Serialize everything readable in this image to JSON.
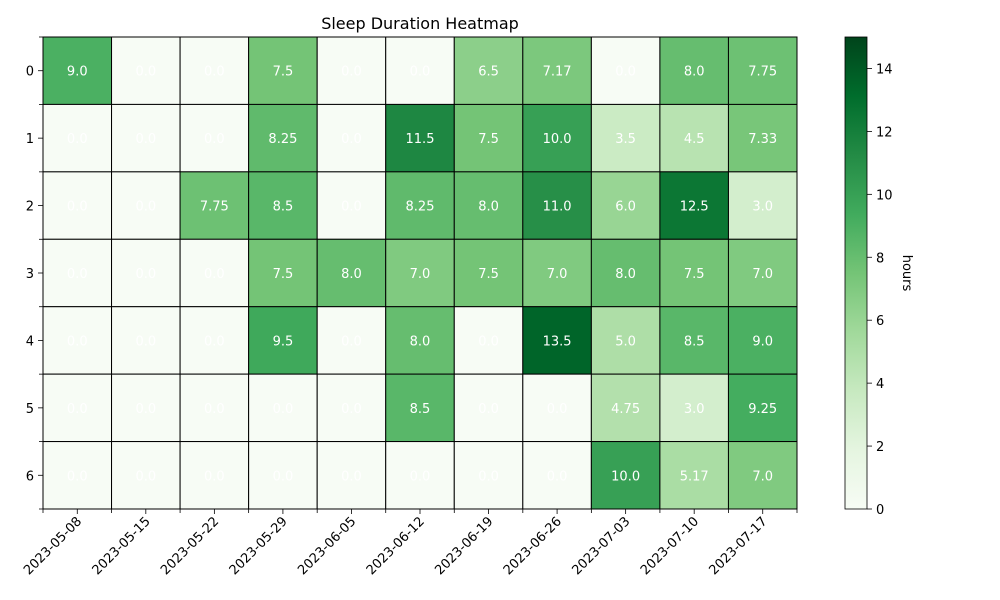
{
  "chart_data": {
    "type": "heatmap",
    "title": "Sleep Duration Heatmap",
    "xlabel": "",
    "ylabel": "",
    "x_categories": [
      "2023-05-08",
      "2023-05-15",
      "2023-05-22",
      "2023-05-29",
      "2023-06-05",
      "2023-06-12",
      "2023-06-19",
      "2023-06-26",
      "2023-07-03",
      "2023-07-10",
      "2023-07-17"
    ],
    "y_categories": [
      "0",
      "1",
      "2",
      "3",
      "4",
      "5",
      "6"
    ],
    "values": [
      [
        9.0,
        0.0,
        0.0,
        7.5,
        0.0,
        0.0,
        6.5,
        7.17,
        0.0,
        8.0,
        7.75
      ],
      [
        0.0,
        0.0,
        0.0,
        8.25,
        0.0,
        11.5,
        7.5,
        10.0,
        3.5,
        4.5,
        7.33
      ],
      [
        0.0,
        0.0,
        7.75,
        8.5,
        0.0,
        8.25,
        8.0,
        11.0,
        6.0,
        12.5,
        3.0
      ],
      [
        0.0,
        0.0,
        0.0,
        7.5,
        8.0,
        7.0,
        7.5,
        7.0,
        8.0,
        7.5,
        7.0
      ],
      [
        0.0,
        0.0,
        0.0,
        9.5,
        0.0,
        8.0,
        0.0,
        13.5,
        5.0,
        8.5,
        9.0
      ],
      [
        0.0,
        0.0,
        0.0,
        0.0,
        0.0,
        8.5,
        0.0,
        0.0,
        4.75,
        3.0,
        9.25
      ],
      [
        0.0,
        0.0,
        0.0,
        0.0,
        0.0,
        0.0,
        0.0,
        0.0,
        10.0,
        5.17,
        7.0
      ]
    ],
    "colorscale": "Greens",
    "colorbar": {
      "label": "hours",
      "range": [
        0,
        15
      ],
      "ticks": [
        0,
        2,
        4,
        6,
        8,
        10,
        12,
        14
      ]
    }
  }
}
